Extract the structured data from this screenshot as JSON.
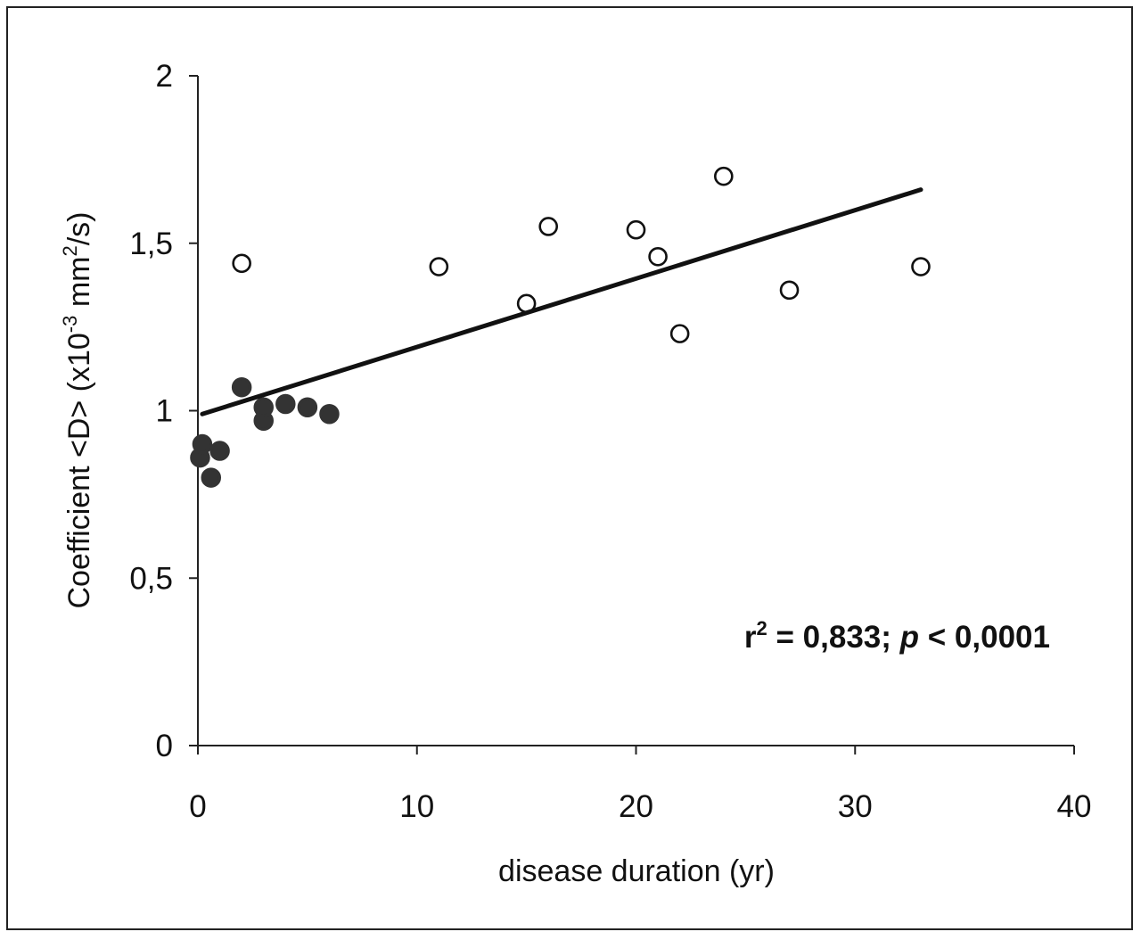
{
  "chart_data": {
    "type": "scatter",
    "title": "",
    "xlabel": "disease duration (yr)",
    "ylabel": {
      "pre": "Coefficient <D> (x10",
      "exp1": "-3",
      "mid": " mm",
      "exp2": "2",
      "post": "/s)"
    },
    "xlim": [
      0,
      40
    ],
    "ylim": [
      0,
      2
    ],
    "x_ticks": [
      0,
      10,
      20,
      30,
      40
    ],
    "x_tick_labels": [
      "0",
      "10",
      "20",
      "30",
      "40"
    ],
    "y_ticks": [
      0,
      0.5,
      1,
      1.5,
      2
    ],
    "y_tick_labels": [
      "0",
      "0,5",
      "1",
      "1,5",
      "2"
    ],
    "grid": false,
    "series": [
      {
        "marker": "filled",
        "color": "#333333",
        "points": [
          {
            "x": 0.1,
            "y": 0.86
          },
          {
            "x": 0.2,
            "y": 0.9
          },
          {
            "x": 0.6,
            "y": 0.8
          },
          {
            "x": 1.0,
            "y": 0.88
          },
          {
            "x": 2.0,
            "y": 1.07
          },
          {
            "x": 3.0,
            "y": 0.97
          },
          {
            "x": 3.0,
            "y": 1.01
          },
          {
            "x": 4.0,
            "y": 1.02
          },
          {
            "x": 5.0,
            "y": 1.01
          },
          {
            "x": 6.0,
            "y": 0.99
          }
        ]
      },
      {
        "marker": "open",
        "color": "#111111",
        "points": [
          {
            "x": 2.0,
            "y": 1.44
          },
          {
            "x": 11.0,
            "y": 1.43
          },
          {
            "x": 15.0,
            "y": 1.32
          },
          {
            "x": 16.0,
            "y": 1.55
          },
          {
            "x": 20.0,
            "y": 1.54
          },
          {
            "x": 21.0,
            "y": 1.46
          },
          {
            "x": 22.0,
            "y": 1.23
          },
          {
            "x": 24.0,
            "y": 1.7
          },
          {
            "x": 27.0,
            "y": 1.36
          },
          {
            "x": 33.0,
            "y": 1.43
          }
        ]
      }
    ],
    "trendline": {
      "x": [
        0.2,
        33.0
      ],
      "y": [
        0.99,
        1.66
      ]
    },
    "annotation": {
      "r": "r",
      "r_exp": "2",
      "stat": " = 0,833; ",
      "p": "p",
      "rest": " < 0,0001"
    }
  }
}
